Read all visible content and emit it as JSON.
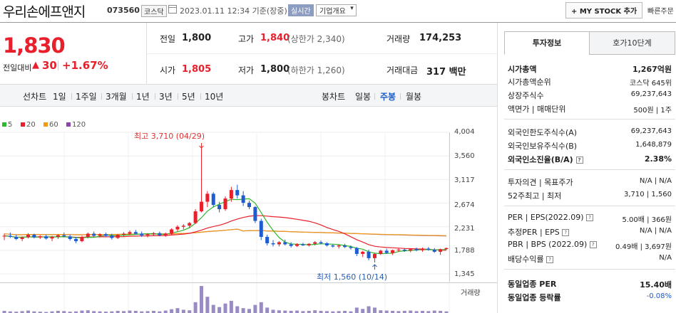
{
  "header": {
    "title": "우리손에프앤지",
    "code": "073560",
    "market": "코스닥",
    "datetime": "2023.01.11 12:34  기준(장중)",
    "realtime_badge": "실시간",
    "corp_overview": "기업개요",
    "mystock_button": "+ MY STOCK 추가",
    "quick_link": "빠른주문"
  },
  "quote": {
    "price": "1,830",
    "change_label": "전일대비",
    "change_arrow": "▲",
    "change": "30",
    "change_pct": "+1.67%",
    "prev_close_label": "전일",
    "prev_close": "1,800",
    "high_label": "고가",
    "high": "1,840",
    "upper_limit": "(상한가 2,340)",
    "volume_label": "거래량",
    "volume": "174,253",
    "open_label": "시가",
    "open": "1,805",
    "low_label": "저가",
    "low": "1,800",
    "lower_limit": "(하한가 1,260)",
    "amount_label": "거래대금",
    "amount": "317 백만"
  },
  "period_bar": {
    "line_chart": "선차트",
    "ranges": [
      "1일",
      "1주일",
      "3개월",
      "1년",
      "3년",
      "5년",
      "10년"
    ],
    "candle_chart": "봉차트",
    "candle_tabs": [
      "일봉",
      "주봉",
      "월봉"
    ],
    "active_candle": "주봉"
  },
  "panel": {
    "tabs": [
      "투자정보",
      "호가10단계"
    ],
    "rows": [
      {
        "label": "시가총액",
        "value": "1,267억원",
        "bold": true
      },
      {
        "label": "시가총액순위",
        "value": "코스닥  645위"
      },
      {
        "label": "상장주식수",
        "value": "69,237,643"
      },
      {
        "label": "액면가 | 매매단위",
        "value": "500원  |  1주"
      },
      {
        "label": "외국인한도주식수(A)",
        "value": "69,237,643"
      },
      {
        "label": "외국인보유주식수(B)",
        "value": "1,648,879"
      },
      {
        "label": "외국인소진율(B/A)",
        "value": "2.38%",
        "bold": true
      },
      {
        "label": "투자의견 | 목표주가",
        "value": "N/A  |  N/A"
      },
      {
        "label": "52주최고 | 최저",
        "value": "3,710  |  1,560"
      },
      {
        "label": "PER | EPS(2022.09)",
        "value": "5.00배  |  366원"
      },
      {
        "label": "추정PER | EPS",
        "value": "N/A  |  N/A"
      },
      {
        "label": "PBR | BPS (2022.09)",
        "value": "0.49배  |  3,697원"
      },
      {
        "label": "배당수익률",
        "value": "N/A"
      },
      {
        "label": "동일업종 PER",
        "value": "15.40배",
        "bold": true
      },
      {
        "label": "동일업종 등락률",
        "value": "-0.08%",
        "blue": true
      }
    ]
  },
  "chart_data": {
    "type": "candlestick",
    "legend": [
      {
        "name": "5",
        "color": "#2eb82e"
      },
      {
        "name": "20",
        "color": "#e8202b"
      },
      {
        "name": "60",
        "color": "#f39c12"
      },
      {
        "name": "120",
        "color": "#8e44ad"
      }
    ],
    "y_ticks": [
      "4,004",
      "3,560",
      "3,117",
      "2,674",
      "2,231",
      "1,788",
      "1,345"
    ],
    "ylim": [
      1345,
      4004
    ],
    "volume_label": "거래량",
    "annotations": {
      "high": "최고 3,710 (04/29)",
      "low": "최저 1,560 (10/14)"
    },
    "candles": [
      [
        2050,
        2100,
        1980,
        2060
      ],
      [
        2060,
        2120,
        2020,
        2040
      ],
      [
        2040,
        2080,
        1980,
        2000
      ],
      [
        2000,
        2050,
        1960,
        2030
      ],
      [
        2030,
        2110,
        2010,
        2080
      ],
      [
        2080,
        2100,
        2010,
        2030
      ],
      [
        2030,
        2070,
        2000,
        2050
      ],
      [
        2050,
        2080,
        1990,
        2010
      ],
      [
        2010,
        2060,
        1960,
        2040
      ],
      [
        2040,
        2090,
        2000,
        2070
      ],
      [
        2070,
        2120,
        2030,
        2050
      ],
      [
        2050,
        2080,
        1970,
        2000
      ],
      [
        2000,
        2040,
        1920,
        1960
      ],
      [
        1960,
        2060,
        1940,
        2040
      ],
      [
        2040,
        2120,
        2010,
        2100
      ],
      [
        2100,
        2140,
        2040,
        2060
      ],
      [
        2060,
        2110,
        2030,
        2090
      ],
      [
        2090,
        2120,
        2040,
        2060
      ],
      [
        2060,
        2100,
        1990,
        2020
      ],
      [
        2020,
        2090,
        2000,
        2080
      ],
      [
        2080,
        2130,
        2050,
        2100
      ],
      [
        2100,
        2160,
        2070,
        2130
      ],
      [
        2130,
        2170,
        2080,
        2100
      ],
      [
        2100,
        2140,
        2040,
        2070
      ],
      [
        2070,
        2110,
        2030,
        2090
      ],
      [
        2090,
        2130,
        2060,
        2110
      ],
      [
        2110,
        2140,
        2050,
        2070
      ],
      [
        2070,
        2120,
        2040,
        2100
      ],
      [
        2100,
        2200,
        2080,
        2180
      ],
      [
        2180,
        2260,
        2140,
        2230
      ],
      [
        2230,
        2280,
        2180,
        2250
      ],
      [
        2250,
        2320,
        2200,
        2300
      ],
      [
        2300,
        2560,
        2280,
        2520
      ],
      [
        2520,
        3710,
        2500,
        2700
      ],
      [
        2700,
        2900,
        2600,
        2850
      ],
      [
        2850,
        2880,
        2600,
        2640
      ],
      [
        2640,
        2700,
        2500,
        2560
      ],
      [
        2560,
        2800,
        2530,
        2760
      ],
      [
        2760,
        2980,
        2700,
        2920
      ],
      [
        2920,
        3020,
        2760,
        2820
      ],
      [
        2820,
        2900,
        2620,
        2680
      ],
      [
        2680,
        2720,
        2560,
        2600
      ],
      [
        2600,
        2620,
        2300,
        2340
      ],
      [
        2340,
        2380,
        1980,
        2040
      ],
      [
        2040,
        2080,
        1880,
        1920
      ],
      [
        1920,
        1980,
        1860,
        1900
      ],
      [
        1900,
        1960,
        1860,
        1940
      ],
      [
        1940,
        1990,
        1880,
        1900
      ],
      [
        1900,
        1940,
        1840,
        1870
      ],
      [
        1870,
        1920,
        1850,
        1900
      ],
      [
        1900,
        1930,
        1870,
        1880
      ],
      [
        1880,
        1920,
        1860,
        1910
      ],
      [
        1910,
        1960,
        1880,
        1940
      ],
      [
        1940,
        1970,
        1900,
        1920
      ],
      [
        1920,
        1940,
        1860,
        1880
      ],
      [
        1880,
        1900,
        1840,
        1860
      ],
      [
        1860,
        1900,
        1820,
        1880
      ],
      [
        1880,
        1910,
        1830,
        1850
      ],
      [
        1850,
        1880,
        1800,
        1830
      ],
      [
        1830,
        1850,
        1680,
        1720
      ],
      [
        1720,
        1780,
        1660,
        1760
      ],
      [
        1760,
        1800,
        1600,
        1640
      ],
      [
        1640,
        1740,
        1560,
        1720
      ],
      [
        1720,
        1800,
        1700,
        1780
      ],
      [
        1780,
        1820,
        1720,
        1740
      ],
      [
        1740,
        1800,
        1700,
        1790
      ],
      [
        1790,
        1830,
        1760,
        1800
      ],
      [
        1800,
        1830,
        1760,
        1780
      ],
      [
        1780,
        1820,
        1750,
        1810
      ],
      [
        1810,
        1840,
        1770,
        1790
      ],
      [
        1790,
        1840,
        1760,
        1820
      ],
      [
        1820,
        1850,
        1780,
        1800
      ],
      [
        1800,
        1830,
        1740,
        1760
      ],
      [
        1760,
        1820,
        1700,
        1810
      ],
      [
        1810,
        1840,
        1800,
        1830
      ]
    ],
    "volumes": [
      8,
      6,
      5,
      7,
      9,
      6,
      5,
      4,
      6,
      8,
      7,
      5,
      6,
      9,
      10,
      7,
      6,
      5,
      6,
      8,
      7,
      9,
      8,
      6,
      7,
      8,
      6,
      9,
      14,
      18,
      12,
      10,
      40,
      100,
      60,
      30,
      22,
      35,
      45,
      25,
      18,
      15,
      30,
      40,
      20,
      12,
      10,
      9,
      8,
      9,
      7,
      8,
      10,
      8,
      7,
      6,
      7,
      8,
      6,
      20,
      15,
      25,
      20,
      10,
      9,
      8,
      7,
      8,
      9,
      7,
      8,
      7,
      9,
      8,
      6
    ]
  }
}
